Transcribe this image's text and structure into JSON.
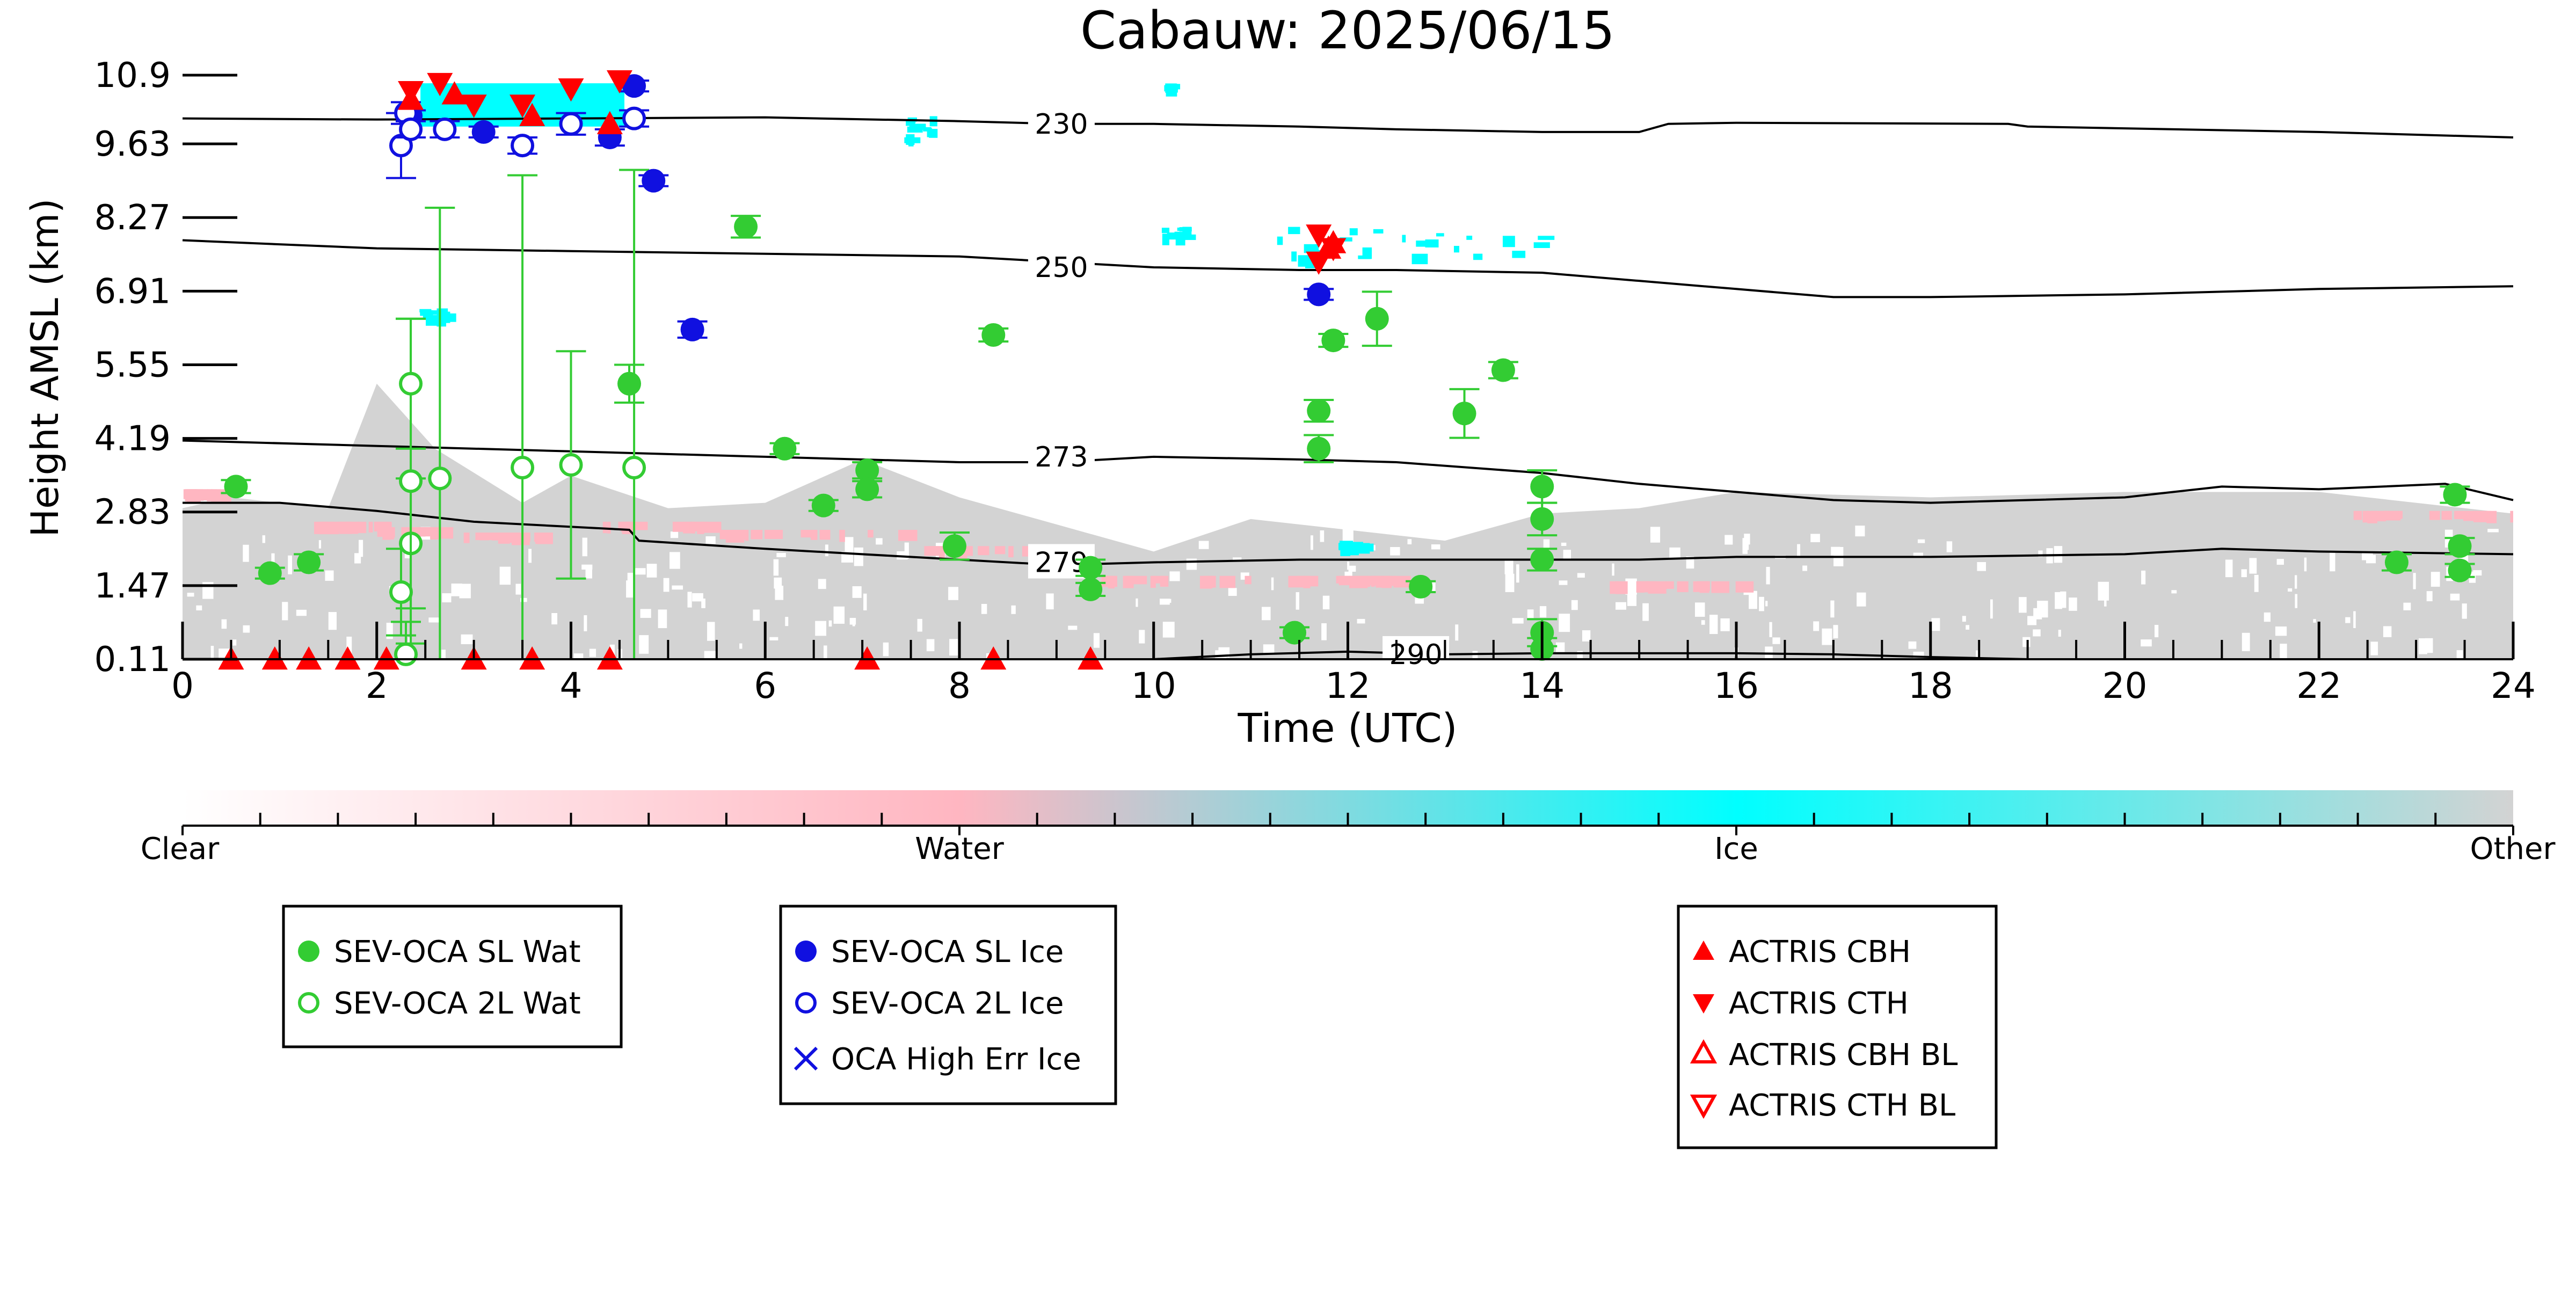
{
  "chart_data": {
    "type": "scatter",
    "title": "Cabauw: 2025/06/15",
    "xlabel": "Time (UTC)",
    "ylabel": "Height AMSL (km)",
    "xlim": [
      0,
      24
    ],
    "ylim": [
      0.11,
      10.9
    ],
    "x_ticks": [
      "0",
      "2",
      "4",
      "6",
      "8",
      "10",
      "12",
      "14",
      "16",
      "18",
      "20",
      "22",
      "24"
    ],
    "y_ticks": [
      "0.11",
      "1.47",
      "2.83",
      "4.19",
      "5.55",
      "6.91",
      "8.27",
      "9.63",
      "10.9"
    ],
    "colorbar": {
      "labels": [
        "Clear",
        "Water",
        "Ice",
        "Other"
      ],
      "colors": [
        "#ffffff",
        "#ffb6c1",
        "#00ffff",
        "#d3d3d3"
      ]
    },
    "isotherms": [
      {
        "label": "230",
        "x": [
          0,
          2,
          4,
          6,
          8,
          9,
          10,
          11.5,
          12.5,
          14,
          15,
          15.3,
          16,
          18.8,
          19,
          22,
          24
        ],
        "y": [
          10.1,
          10.08,
          10.1,
          10.12,
          10.05,
          10.0,
          10.0,
          9.95,
          9.9,
          9.85,
          9.85,
          10.0,
          10.02,
          10.0,
          9.95,
          9.85,
          9.75
        ]
      },
      {
        "label": "250",
        "x": [
          0,
          2,
          4,
          6,
          8,
          9,
          10,
          11.5,
          12.5,
          14,
          15,
          16,
          17,
          18,
          20,
          22,
          24
        ],
        "y": [
          7.85,
          7.7,
          7.65,
          7.6,
          7.55,
          7.45,
          7.35,
          7.3,
          7.3,
          7.25,
          7.1,
          6.95,
          6.8,
          6.8,
          6.85,
          6.95,
          7.0
        ]
      },
      {
        "label": "273",
        "x": [
          0,
          2,
          4,
          6,
          8,
          9,
          10,
          11.5,
          12.5,
          14,
          15,
          16,
          17,
          18,
          20,
          21,
          22,
          23.3,
          24
        ],
        "y": [
          4.15,
          4.05,
          3.95,
          3.85,
          3.75,
          3.75,
          3.85,
          3.8,
          3.75,
          3.55,
          3.35,
          3.2,
          3.05,
          3.0,
          3.1,
          3.3,
          3.25,
          3.35,
          3.05
        ]
      },
      {
        "label": "279",
        "x": [
          0,
          1,
          2,
          3,
          4.6,
          4.7,
          6,
          8,
          9,
          10,
          11.5,
          12.5,
          14,
          15,
          16,
          18,
          20,
          21,
          22,
          24
        ],
        "y": [
          3.0,
          3.0,
          2.85,
          2.65,
          2.5,
          2.3,
          2.15,
          1.95,
          1.85,
          1.9,
          1.95,
          1.95,
          1.95,
          1.95,
          2.0,
          2.0,
          2.05,
          2.15,
          2.1,
          2.05
        ]
      },
      {
        "label": "290",
        "x": [
          10,
          11,
          12,
          13,
          14,
          16,
          17,
          18,
          19,
          24
        ],
        "y": [
          0.11,
          0.2,
          0.25,
          0.2,
          0.22,
          0.22,
          0.2,
          0.15,
          0.11,
          0.11
        ]
      }
    ],
    "series": [
      {
        "name": "SEV-OCA SL Wat",
        "color": "#33cc33",
        "marker": "circle-filled",
        "points": [
          {
            "x": 0.55,
            "y": 3.3,
            "err": 0.12
          },
          {
            "x": 0.9,
            "y": 1.7,
            "err": 0.1
          },
          {
            "x": 1.3,
            "y": 1.9,
            "err": 0.15
          },
          {
            "x": 4.6,
            "y": 5.2,
            "err": 0.35
          },
          {
            "x": 5.8,
            "y": 8.1,
            "err": 0.2
          },
          {
            "x": 6.2,
            "y": 4.0,
            "err": 0.1
          },
          {
            "x": 6.6,
            "y": 2.95,
            "err": 0.1
          },
          {
            "x": 7.05,
            "y": 3.6,
            "err": 0.15
          },
          {
            "x": 7.05,
            "y": 3.25,
            "err": 0.15
          },
          {
            "x": 7.95,
            "y": 2.2,
            "err": 0.25
          },
          {
            "x": 8.35,
            "y": 6.1,
            "err": 0.12
          },
          {
            "x": 9.35,
            "y": 1.8,
            "err": 0.15
          },
          {
            "x": 9.35,
            "y": 1.4,
            "err": 0.12
          },
          {
            "x": 11.45,
            "y": 0.6,
            "err": 0.1
          },
          {
            "x": 11.7,
            "y": 4.7,
            "err": 0.2
          },
          {
            "x": 11.7,
            "y": 4.0,
            "err": 0.25
          },
          {
            "x": 11.85,
            "y": 6.0,
            "err": 0.12
          },
          {
            "x": 12.3,
            "y": 6.4,
            "err": 0.5
          },
          {
            "x": 12.75,
            "y": 1.45,
            "err": 0.1
          },
          {
            "x": 13.2,
            "y": 4.65,
            "err": 0.45
          },
          {
            "x": 13.6,
            "y": 5.45,
            "err": 0.15
          },
          {
            "x": 14.0,
            "y": 3.3,
            "err": 0.3
          },
          {
            "x": 14.0,
            "y": 2.7,
            "err": 0.3
          },
          {
            "x": 14.0,
            "y": 1.95,
            "err": 0.2
          },
          {
            "x": 14.0,
            "y": 0.6,
            "err": 0.25
          },
          {
            "x": 14.0,
            "y": 0.3,
            "err": 0.2
          },
          {
            "x": 22.8,
            "y": 1.9,
            "err": 0.15
          },
          {
            "x": 23.4,
            "y": 3.15,
            "err": 0.15
          },
          {
            "x": 23.45,
            "y": 2.2,
            "err": 0.15
          },
          {
            "x": 23.45,
            "y": 1.75,
            "err": 0.12
          }
        ]
      },
      {
        "name": "SEV-OCA 2L Wat",
        "color": "#33cc33",
        "marker": "circle-open",
        "points": [
          {
            "x": 2.25,
            "y": 1.35,
            "err": 0.8
          },
          {
            "x": 2.3,
            "y": 0.2,
            "err": 0.6
          },
          {
            "x": 2.35,
            "y": 2.25,
            "err": 1.2
          },
          {
            "x": 2.35,
            "y": 3.4,
            "err": 3.0
          },
          {
            "x": 2.35,
            "y": 5.2,
            "err": 1.2
          },
          {
            "x": 2.65,
            "y": 3.45,
            "err": 5.0
          },
          {
            "x": 3.5,
            "y": 3.65,
            "err": 5.4
          },
          {
            "x": 4.0,
            "y": 3.7,
            "err": 2.1
          },
          {
            "x": 4.65,
            "y": 3.65,
            "err": 5.5
          }
        ]
      },
      {
        "name": "SEV-OCA SL Ice",
        "color": "#1010e0",
        "marker": "circle-filled",
        "points": [
          {
            "x": 2.35,
            "y": 10.15,
            "err": 0.1
          },
          {
            "x": 3.1,
            "y": 9.85,
            "err": 0.1
          },
          {
            "x": 4.4,
            "y": 9.75,
            "err": 0.15
          },
          {
            "x": 4.65,
            "y": 10.7,
            "err": 0.1
          },
          {
            "x": 4.85,
            "y": 8.95,
            "err": 0.1
          },
          {
            "x": 5.25,
            "y": 6.2,
            "err": 0.15
          },
          {
            "x": 11.7,
            "y": 6.85,
            "err": 0.1
          }
        ]
      },
      {
        "name": "SEV-OCA 2L Ice",
        "color": "#1010e0",
        "marker": "circle-open",
        "points": [
          {
            "x": 2.25,
            "y": 9.6,
            "err": 0.6
          },
          {
            "x": 2.3,
            "y": 10.2,
            "err": 0.2
          },
          {
            "x": 2.35,
            "y": 9.9,
            "err": 0.15
          },
          {
            "x": 2.7,
            "y": 9.9,
            "err": 0.15
          },
          {
            "x": 3.5,
            "y": 9.6,
            "err": 0.15
          },
          {
            "x": 4.0,
            "y": 10.0,
            "err": 0.2
          },
          {
            "x": 4.65,
            "y": 10.1,
            "err": 0.15
          }
        ]
      },
      {
        "name": "OCA High Err Ice",
        "color": "#1010e0",
        "marker": "x",
        "points": []
      },
      {
        "name": "ACTRIS CBH",
        "color": "#ff0000",
        "marker": "triangle-up-filled",
        "points": [
          {
            "x": 2.35,
            "y": 10.45
          },
          {
            "x": 2.8,
            "y": 10.55
          },
          {
            "x": 3.6,
            "y": 10.15
          },
          {
            "x": 4.4,
            "y": 10.0
          },
          {
            "x": 11.8,
            "y": 7.7
          },
          {
            "x": 11.85,
            "y": 7.8
          },
          {
            "x": 0.5,
            "y": 0.11
          },
          {
            "x": 0.95,
            "y": 0.11
          },
          {
            "x": 1.3,
            "y": 0.11
          },
          {
            "x": 1.7,
            "y": 0.11
          },
          {
            "x": 2.1,
            "y": 0.11
          },
          {
            "x": 3.0,
            "y": 0.11
          },
          {
            "x": 3.6,
            "y": 0.11
          },
          {
            "x": 4.4,
            "y": 0.11
          },
          {
            "x": 7.05,
            "y": 0.11
          },
          {
            "x": 8.35,
            "y": 0.11
          },
          {
            "x": 9.35,
            "y": 0.11
          }
        ]
      },
      {
        "name": "ACTRIS CTH",
        "color": "#ff0000",
        "marker": "triangle-down-filled",
        "points": [
          {
            "x": 2.35,
            "y": 10.6
          },
          {
            "x": 2.65,
            "y": 10.75
          },
          {
            "x": 3.0,
            "y": 10.35
          },
          {
            "x": 3.5,
            "y": 10.35
          },
          {
            "x": 4.0,
            "y": 10.65
          },
          {
            "x": 4.5,
            "y": 10.8
          },
          {
            "x": 11.7,
            "y": 7.95
          },
          {
            "x": 11.85,
            "y": 7.7
          },
          {
            "x": 11.7,
            "y": 7.45
          }
        ]
      },
      {
        "name": "ACTRIS CBH BL",
        "color": "#ff0000",
        "marker": "triangle-up-open",
        "points": []
      },
      {
        "name": "ACTRIS CTH BL",
        "color": "#ff0000",
        "marker": "triangle-down-open",
        "points": []
      }
    ],
    "legend_groups": [
      [
        "SEV-OCA SL Wat",
        "SEV-OCA 2L Wat"
      ],
      [
        "SEV-OCA SL Ice",
        "SEV-OCA 2L Ice",
        "OCA High Err Ice"
      ],
      [
        "ACTRIS CBH",
        "ACTRIS CTH",
        "ACTRIS CBH BL",
        "ACTRIS CTH BL"
      ]
    ],
    "legend_placement": "below colorbar"
  }
}
